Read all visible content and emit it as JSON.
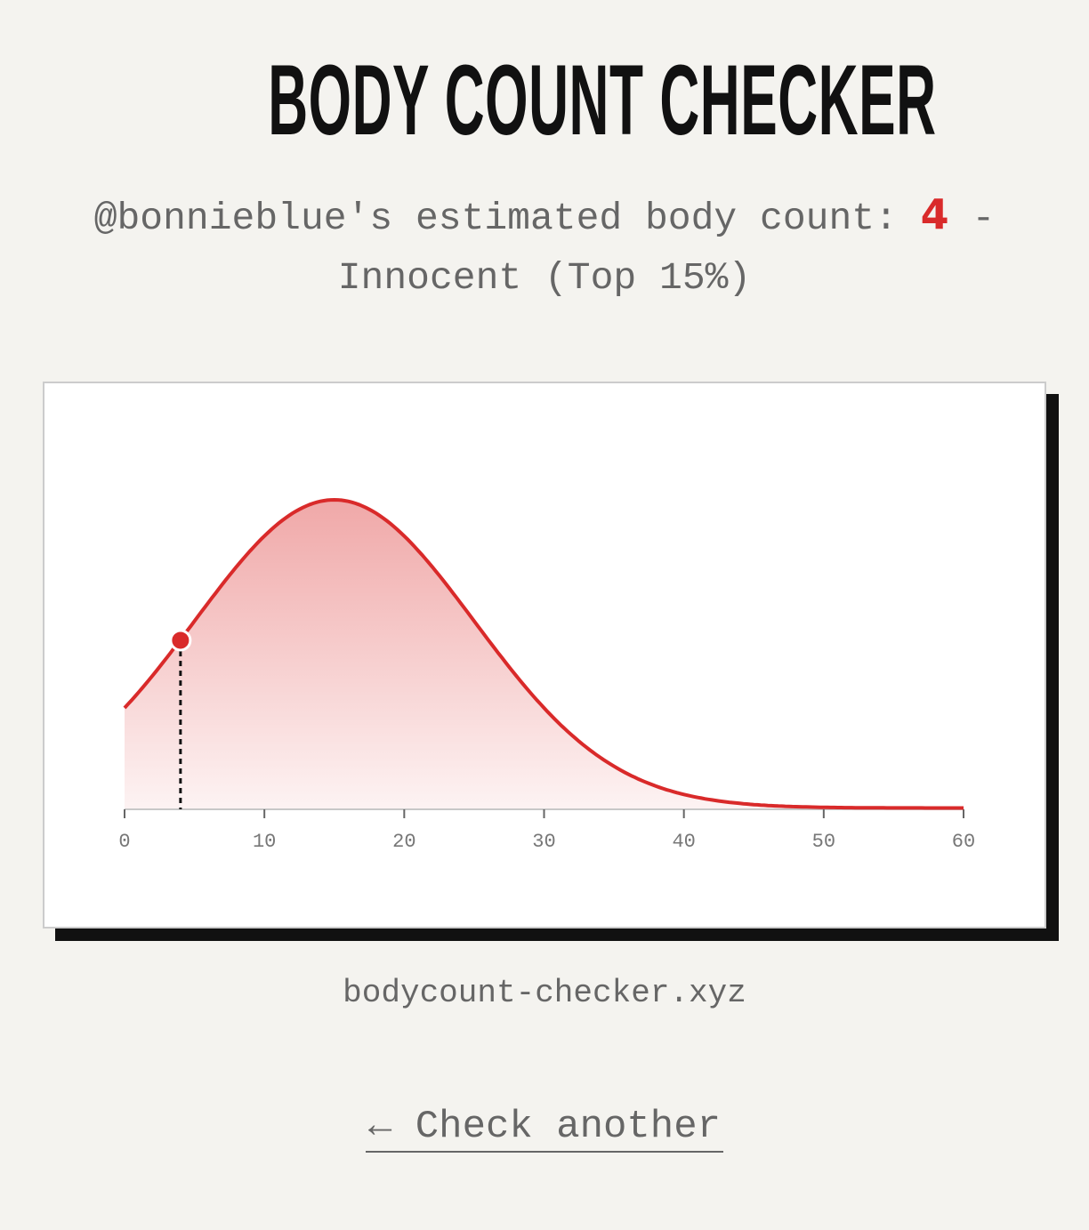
{
  "header": {
    "title": "BODY COUNT CHECKER"
  },
  "result": {
    "prefix": "@bonnieblue's estimated body count: ",
    "count": "4",
    "separator": " -",
    "verdict": "Innocent (Top 15%)"
  },
  "colors": {
    "accent": "#d92a2a",
    "text": "#666666",
    "background": "#f4f3ef"
  },
  "chart_data": {
    "type": "area",
    "distribution": "normal",
    "mean": 15,
    "sd": 10,
    "xlim": [
      0,
      60
    ],
    "xticks": [
      "0",
      "10",
      "20",
      "30",
      "40",
      "50",
      "60"
    ],
    "marker": {
      "x": 4
    },
    "grid": false,
    "line_color": "#d92a2a"
  },
  "footer": {
    "site": "bodycount-checker.xyz",
    "back_label": "← Check another"
  }
}
